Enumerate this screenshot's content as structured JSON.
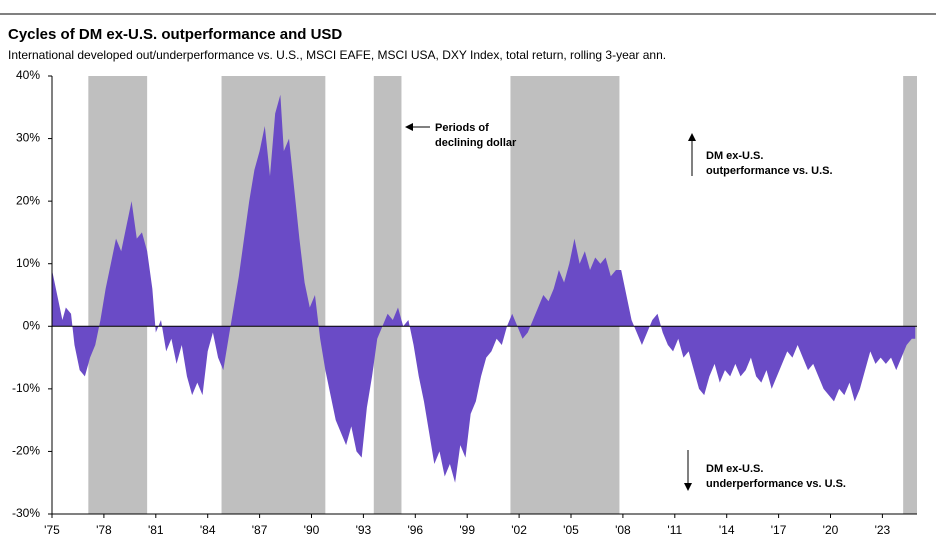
{
  "chart_data": {
    "type": "area",
    "title": "Cycles of DM ex-U.S. outperformance and USD",
    "subtitle": "International developed out/underperformance vs. U.S., MSCI EAFE, MSCI USA, DXY Index, total return, rolling 3-year ann.",
    "x": [
      1975.0,
      1975.3,
      1975.6,
      1975.8,
      1976.1,
      1976.3,
      1976.6,
      1976.9,
      1977.2,
      1977.5,
      1977.8,
      1978.1,
      1978.4,
      1978.7,
      1979.0,
      1979.3,
      1979.6,
      1979.9,
      1980.2,
      1980.5,
      1980.8,
      1981.0,
      1981.3,
      1981.6,
      1981.9,
      1982.2,
      1982.5,
      1982.8,
      1983.1,
      1983.4,
      1983.7,
      1984.0,
      1984.3,
      1984.6,
      1984.9,
      1985.2,
      1985.5,
      1985.8,
      1986.1,
      1986.4,
      1986.7,
      1987.0,
      1987.3,
      1987.6,
      1987.9,
      1988.2,
      1988.4,
      1988.7,
      1989.0,
      1989.3,
      1989.6,
      1989.9,
      1990.2,
      1990.5,
      1990.8,
      1991.1,
      1991.4,
      1991.7,
      1992.0,
      1992.3,
      1992.6,
      1992.9,
      1993.2,
      1993.5,
      1993.8,
      1994.1,
      1994.4,
      1994.7,
      1995.0,
      1995.3,
      1995.6,
      1995.9,
      1996.2,
      1996.5,
      1996.8,
      1997.1,
      1997.4,
      1997.7,
      1998.0,
      1998.3,
      1998.6,
      1998.9,
      1999.2,
      1999.5,
      1999.8,
      2000.1,
      2000.4,
      2000.7,
      2001.0,
      2001.3,
      2001.6,
      2001.9,
      2002.2,
      2002.5,
      2002.8,
      2003.1,
      2003.4,
      2003.7,
      2004.0,
      2004.3,
      2004.6,
      2004.9,
      2005.2,
      2005.5,
      2005.8,
      2006.1,
      2006.4,
      2006.7,
      2007.0,
      2007.3,
      2007.6,
      2007.9,
      2008.2,
      2008.5,
      2008.8,
      2009.1,
      2009.4,
      2009.7,
      2010.0,
      2010.3,
      2010.6,
      2010.9,
      2011.2,
      2011.5,
      2011.8,
      2012.1,
      2012.4,
      2012.7,
      2013.0,
      2013.3,
      2013.6,
      2013.9,
      2014.2,
      2014.5,
      2014.8,
      2015.1,
      2015.4,
      2015.7,
      2016.0,
      2016.3,
      2016.6,
      2016.9,
      2017.2,
      2017.5,
      2017.8,
      2018.1,
      2018.4,
      2018.7,
      2019.0,
      2019.3,
      2019.6,
      2019.9,
      2020.2,
      2020.5,
      2020.8,
      2021.1,
      2021.4,
      2021.7,
      2022.0,
      2022.3,
      2022.6,
      2022.9,
      2023.2,
      2023.5,
      2023.8,
      2024.1,
      2024.4,
      2024.7,
      2024.9
    ],
    "series": [
      {
        "color": "#6a4bc6",
        "values": [
          9,
          5,
          1,
          3,
          2,
          -3,
          -7,
          -8,
          -5,
          -3,
          1,
          6,
          10,
          14,
          12,
          16,
          20,
          14,
          15,
          12,
          6,
          -1,
          1,
          -4,
          -2,
          -6,
          -3,
          -8,
          -11,
          -9,
          -11,
          -4,
          -1,
          -5,
          -7,
          -2,
          3,
          8,
          14,
          20,
          25,
          28,
          32,
          24,
          34,
          37,
          28,
          30,
          22,
          14,
          7,
          3,
          5,
          -2,
          -7,
          -11,
          -15,
          -17,
          -19,
          -16,
          -20,
          -21,
          -13,
          -8,
          -2,
          0,
          2,
          1,
          3,
          0,
          1,
          -3,
          -8,
          -12,
          -17,
          -22,
          -20,
          -24,
          -22,
          -25,
          -19,
          -21,
          -14,
          -12,
          -8,
          -5,
          -4,
          -2,
          -3,
          0,
          2,
          0,
          -2,
          -1,
          1,
          3,
          5,
          4,
          6,
          9,
          7,
          10,
          14,
          10,
          12,
          9,
          11,
          10,
          11,
          8,
          9,
          9,
          5,
          1,
          -1,
          -3,
          -1,
          1,
          2,
          -1,
          -3,
          -4,
          -2,
          -5,
          -4,
          -7,
          -10,
          -11,
          -8,
          -6,
          -9,
          -7,
          -8,
          -6,
          -8,
          -7,
          -5,
          -8,
          -9,
          -7,
          -10,
          -8,
          -6,
          -4,
          -5,
          -3,
          -5,
          -7,
          -6,
          -8,
          -10,
          -11,
          -12,
          -10,
          -11,
          -9,
          -12,
          -10,
          -7,
          -4,
          -6,
          -5,
          -6,
          -5,
          -7,
          -5,
          -3,
          -2,
          -2
        ]
      }
    ],
    "shaded_periods": [
      [
        1977.1,
        1980.5
      ],
      [
        1984.8,
        1990.8
      ],
      [
        1993.6,
        1995.2
      ],
      [
        2001.5,
        2007.8
      ],
      [
        2024.2,
        2025
      ]
    ],
    "shade_color": "#bfbfbf",
    "xlim": [
      1975,
      2025
    ],
    "ylim": [
      -30,
      40
    ],
    "xticks": [
      {
        "value": 1975,
        "label": "'75"
      },
      {
        "value": 1978,
        "label": "'78"
      },
      {
        "value": 1981,
        "label": "'81"
      },
      {
        "value": 1984,
        "label": "'84"
      },
      {
        "value": 1987,
        "label": "'87"
      },
      {
        "value": 1990,
        "label": "'90"
      },
      {
        "value": 1993,
        "label": "'93"
      },
      {
        "value": 1996,
        "label": "'96"
      },
      {
        "value": 1999,
        "label": "'99"
      },
      {
        "value": 2002,
        "label": "'02"
      },
      {
        "value": 2005,
        "label": "'05"
      },
      {
        "value": 2008,
        "label": "'08"
      },
      {
        "value": 2011,
        "label": "'11"
      },
      {
        "value": 2014,
        "label": "'14"
      },
      {
        "value": 2017,
        "label": "'17"
      },
      {
        "value": 2020,
        "label": "'20"
      },
      {
        "value": 2023,
        "label": "'23"
      }
    ],
    "yticks": [
      {
        "value": 40,
        "label": "40%"
      },
      {
        "value": 30,
        "label": "30%"
      },
      {
        "value": 20,
        "label": "20%"
      },
      {
        "value": 10,
        "label": "10%"
      },
      {
        "value": 0,
        "label": "0%"
      },
      {
        "value": -10,
        "label": "-10%"
      },
      {
        "value": -20,
        "label": "-20%"
      },
      {
        "value": -30,
        "label": "-30%"
      }
    ],
    "annotations": [
      {
        "lines": [
          "Periods of",
          "declining dollar"
        ]
      },
      {
        "lines": [
          "DM ex-U.S.",
          "outperformance vs. U.S."
        ]
      },
      {
        "lines": [
          "DM ex-U.S.",
          "underperformance vs. U.S."
        ]
      }
    ]
  }
}
